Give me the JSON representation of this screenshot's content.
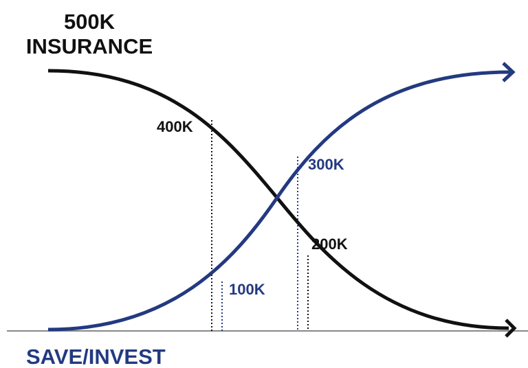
{
  "title": {
    "line1": "500K",
    "line2": "INSURANCE"
  },
  "bottom_label": "SAVE/INVEST",
  "markers": [
    {
      "label": "400K",
      "curve": "insurance"
    },
    {
      "label": "300K",
      "curve": "save_invest"
    },
    {
      "label": "200K",
      "curve": "insurance"
    },
    {
      "label": "100K",
      "curve": "save_invest"
    }
  ]
}
